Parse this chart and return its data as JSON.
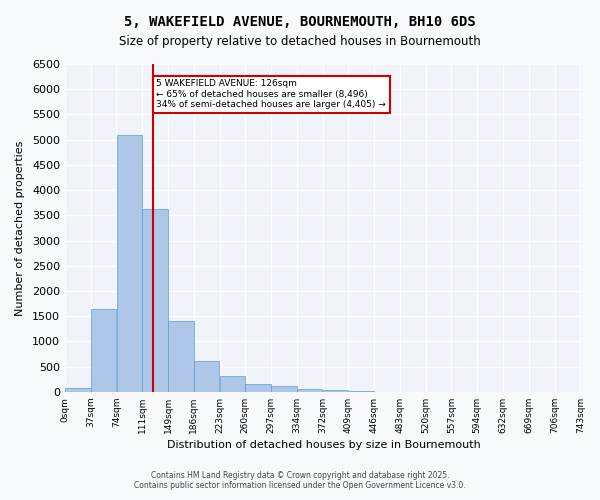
{
  "title_line1": "5, WAKEFIELD AVENUE, BOURNEMOUTH, BH10 6DS",
  "title_line2": "Size of property relative to detached houses in Bournemouth",
  "xlabel": "Distribution of detached houses by size in Bournemouth",
  "ylabel": "Number of detached properties",
  "bar_edges": [
    0,
    37,
    74,
    111,
    148,
    185,
    222,
    259,
    296,
    333,
    370,
    407,
    444,
    481,
    518,
    555,
    592,
    629,
    666,
    703,
    740
  ],
  "bar_heights": [
    75,
    1650,
    5100,
    3620,
    1400,
    610,
    320,
    160,
    120,
    60,
    30,
    10,
    0,
    0,
    0,
    0,
    0,
    0,
    0,
    0
  ],
  "tick_labels": [
    "0sqm",
    "37sqm",
    "74sqm",
    "111sqm",
    "149sqm",
    "186sqm",
    "223sqm",
    "260sqm",
    "297sqm",
    "334sqm",
    "372sqm",
    "409sqm",
    "446sqm",
    "483sqm",
    "520sqm",
    "557sqm",
    "594sqm",
    "632sqm",
    "669sqm",
    "706sqm",
    "743sqm"
  ],
  "bar_color": "#aec6e8",
  "bar_edge_color": "#5a9fd4",
  "property_line_x": 126,
  "property_line_color": "#cc0000",
  "annotation_text": "5 WAKEFIELD AVENUE: 126sqm\n← 65% of detached houses are smaller (8,496)\n34% of semi-detached houses are larger (4,405) →",
  "annotation_box_color": "#cc0000",
  "ylim": [
    0,
    6500
  ],
  "yticks": [
    0,
    500,
    1000,
    1500,
    2000,
    2500,
    3000,
    3500,
    4000,
    4500,
    5000,
    5500,
    6000,
    6500
  ],
  "background_color": "#f0f4fa",
  "grid_color": "#ffffff",
  "footer_line1": "Contains HM Land Registry data © Crown copyright and database right 2025.",
  "footer_line2": "Contains public sector information licensed under the Open Government Licence v3.0."
}
